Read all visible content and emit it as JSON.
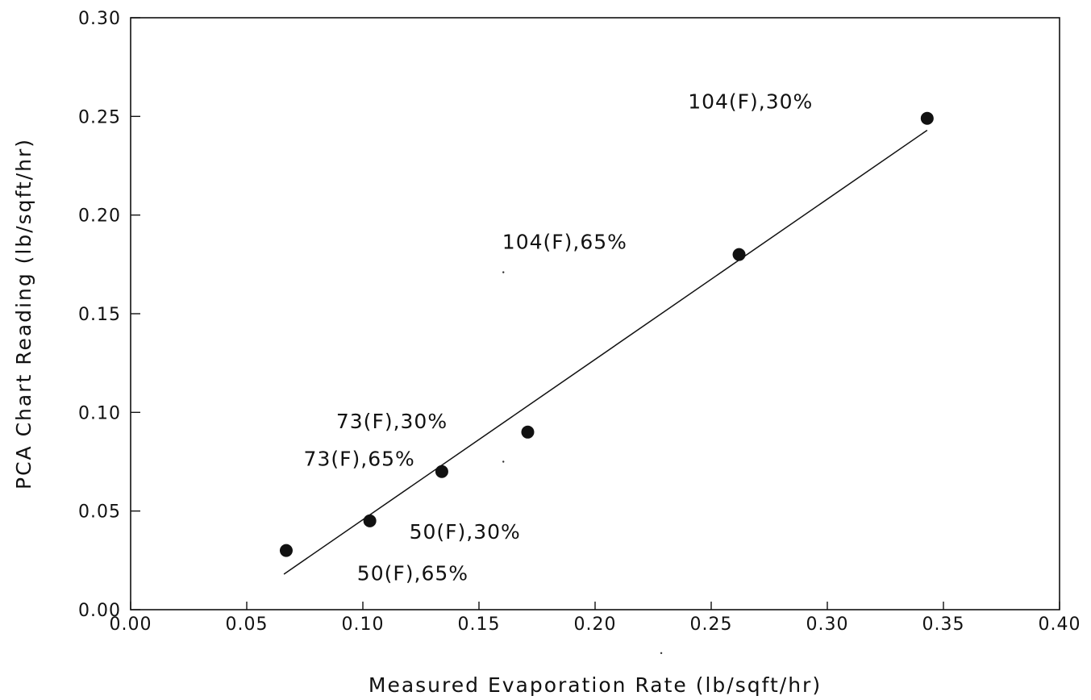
{
  "chart_data": {
    "type": "scatter",
    "xlabel": "Measured Evaporation Rate (lb/sqft/hr)",
    "ylabel": "PCA Chart Reading (lb/sqft/hr)",
    "xlim": [
      0.0,
      0.4
    ],
    "ylim": [
      0.0,
      0.3
    ],
    "x_ticks": [
      "0.00",
      "0.05",
      "0.10",
      "0.15",
      "0.20",
      "0.25",
      "0.30",
      "0.35",
      "0.40"
    ],
    "y_ticks": [
      "0.00",
      "0.05",
      "0.10",
      "0.15",
      "0.20",
      "0.25",
      "0.30"
    ],
    "grid": false,
    "points": [
      {
        "x": 0.067,
        "y": 0.03
      },
      {
        "x": 0.103,
        "y": 0.045
      },
      {
        "x": 0.134,
        "y": 0.07
      },
      {
        "x": 0.171,
        "y": 0.09
      },
      {
        "x": 0.262,
        "y": 0.18
      },
      {
        "x": 0.343,
        "y": 0.249
      }
    ],
    "fit_line": {
      "x": [
        0.066,
        0.343
      ],
      "y": [
        0.018,
        0.243
      ]
    },
    "annotations": [
      {
        "text": "104(F),30%",
        "x": 0.24,
        "y": 0.254
      },
      {
        "text": "104(F),65%",
        "x": 0.16,
        "y": 0.183
      },
      {
        "text": "73(F),30%",
        "x": 0.0885,
        "y": 0.092
      },
      {
        "text": "73(F),65%",
        "x": 0.0745,
        "y": 0.073
      },
      {
        "text": "50(F),30%",
        "x": 0.12,
        "y": 0.036
      },
      {
        "text": "50(F),65%",
        "x": 0.0975,
        "y": 0.015
      }
    ],
    "stray_marks": [
      {
        "x": 0.1605,
        "y": 0.171
      },
      {
        "x": 0.1605,
        "y": 0.075
      },
      {
        "x": 0.2285,
        "y": -0.022
      }
    ]
  }
}
